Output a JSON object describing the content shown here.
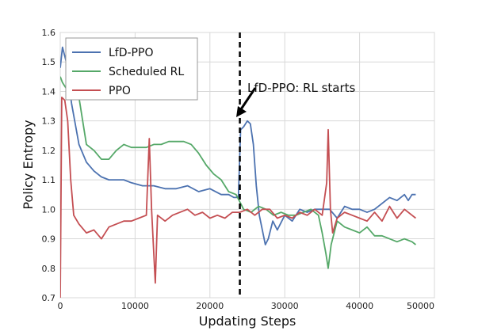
{
  "chart_data": {
    "type": "line",
    "title": "",
    "xlabel": "Updating Steps",
    "ylabel": "Policy Entropy",
    "xlim": [
      0,
      50000
    ],
    "ylim": [
      0.7,
      1.6
    ],
    "xticks": [
      0,
      10000,
      20000,
      30000,
      40000,
      50000
    ],
    "yticks": [
      0.7,
      0.8,
      0.9,
      1.0,
      1.1,
      1.2,
      1.3,
      1.4,
      1.5,
      1.6
    ],
    "grid": true,
    "legend_position": "top-left",
    "series": [
      {
        "name": "LfD-PPO",
        "color": "#4c72b0",
        "points": [
          [
            0,
            1.48
          ],
          [
            300,
            1.55
          ],
          [
            800,
            1.5
          ],
          [
            1500,
            1.36
          ],
          [
            2500,
            1.22
          ],
          [
            3500,
            1.16
          ],
          [
            4500,
            1.13
          ],
          [
            5500,
            1.11
          ],
          [
            6500,
            1.1
          ],
          [
            7500,
            1.1
          ],
          [
            8500,
            1.1
          ],
          [
            9500,
            1.09
          ],
          [
            11000,
            1.08
          ],
          [
            12500,
            1.08
          ],
          [
            14000,
            1.07
          ],
          [
            15500,
            1.07
          ],
          [
            17000,
            1.08
          ],
          [
            18500,
            1.06
          ],
          [
            20000,
            1.07
          ],
          [
            21500,
            1.05
          ],
          [
            22500,
            1.05
          ],
          [
            23200,
            1.04
          ],
          [
            23800,
            1.04
          ],
          [
            24100,
            1.27
          ],
          [
            24500,
            1.28
          ],
          [
            25000,
            1.3
          ],
          [
            25400,
            1.29
          ],
          [
            25800,
            1.22
          ],
          [
            26200,
            1.08
          ],
          [
            26600,
            0.98
          ],
          [
            27000,
            0.93
          ],
          [
            27400,
            0.88
          ],
          [
            27800,
            0.9
          ],
          [
            28400,
            0.96
          ],
          [
            29000,
            0.93
          ],
          [
            30000,
            0.98
          ],
          [
            31000,
            0.96
          ],
          [
            32000,
            1.0
          ],
          [
            33000,
            0.99
          ],
          [
            34000,
            1.0
          ],
          [
            35000,
            1.0
          ],
          [
            36000,
            1.0
          ],
          [
            37000,
            0.97
          ],
          [
            38000,
            1.01
          ],
          [
            39000,
            1.0
          ],
          [
            40000,
            1.0
          ],
          [
            41000,
            0.99
          ],
          [
            42000,
            1.0
          ],
          [
            43000,
            1.02
          ],
          [
            44000,
            1.04
          ],
          [
            45000,
            1.03
          ],
          [
            46000,
            1.05
          ],
          [
            46500,
            1.03
          ],
          [
            47000,
            1.05
          ],
          [
            47500,
            1.05
          ]
        ]
      },
      {
        "name": "Scheduled RL",
        "color": "#55a868",
        "points": [
          [
            0,
            1.45
          ],
          [
            300,
            1.43
          ],
          [
            800,
            1.41
          ],
          [
            1500,
            1.4
          ],
          [
            2500,
            1.38
          ],
          [
            3000,
            1.3
          ],
          [
            3500,
            1.22
          ],
          [
            4500,
            1.2
          ],
          [
            5500,
            1.17
          ],
          [
            6500,
            1.17
          ],
          [
            7500,
            1.2
          ],
          [
            8500,
            1.22
          ],
          [
            9500,
            1.21
          ],
          [
            10500,
            1.21
          ],
          [
            11500,
            1.21
          ],
          [
            12500,
            1.22
          ],
          [
            13500,
            1.22
          ],
          [
            14500,
            1.23
          ],
          [
            15500,
            1.23
          ],
          [
            16500,
            1.23
          ],
          [
            17500,
            1.22
          ],
          [
            18500,
            1.19
          ],
          [
            19500,
            1.15
          ],
          [
            20500,
            1.12
          ],
          [
            21500,
            1.1
          ],
          [
            22500,
            1.06
          ],
          [
            23500,
            1.05
          ],
          [
            24500,
            1.0
          ],
          [
            25500,
            0.99
          ],
          [
            26500,
            1.01
          ],
          [
            27500,
            1.0
          ],
          [
            28500,
            0.98
          ],
          [
            29500,
            0.99
          ],
          [
            30500,
            0.98
          ],
          [
            31500,
            0.98
          ],
          [
            32500,
            0.99
          ],
          [
            33500,
            1.0
          ],
          [
            34500,
            0.98
          ],
          [
            35000,
            0.92
          ],
          [
            35500,
            0.85
          ],
          [
            35800,
            0.8
          ],
          [
            36200,
            0.88
          ],
          [
            37000,
            0.96
          ],
          [
            38000,
            0.94
          ],
          [
            39000,
            0.93
          ],
          [
            40000,
            0.92
          ],
          [
            41000,
            0.94
          ],
          [
            42000,
            0.91
          ],
          [
            43000,
            0.91
          ],
          [
            44000,
            0.9
          ],
          [
            45000,
            0.89
          ],
          [
            46000,
            0.9
          ],
          [
            47000,
            0.89
          ],
          [
            47500,
            0.88
          ]
        ]
      },
      {
        "name": "PPO",
        "color": "#c44e52",
        "points": [
          [
            0,
            0.7
          ],
          [
            200,
            1.38
          ],
          [
            600,
            1.37
          ],
          [
            1000,
            1.3
          ],
          [
            1400,
            1.1
          ],
          [
            1800,
            0.98
          ],
          [
            2500,
            0.95
          ],
          [
            3500,
            0.92
          ],
          [
            4500,
            0.93
          ],
          [
            5500,
            0.9
          ],
          [
            6500,
            0.94
          ],
          [
            7500,
            0.95
          ],
          [
            8500,
            0.96
          ],
          [
            9500,
            0.96
          ],
          [
            10500,
            0.97
          ],
          [
            11500,
            0.98
          ],
          [
            11900,
            1.24
          ],
          [
            12200,
            1.0
          ],
          [
            12500,
            0.85
          ],
          [
            12700,
            0.75
          ],
          [
            13000,
            0.98
          ],
          [
            14000,
            0.96
          ],
          [
            15000,
            0.98
          ],
          [
            16000,
            0.99
          ],
          [
            17000,
            1.0
          ],
          [
            18000,
            0.98
          ],
          [
            19000,
            0.99
          ],
          [
            20000,
            0.97
          ],
          [
            21000,
            0.98
          ],
          [
            22000,
            0.97
          ],
          [
            23000,
            0.99
          ],
          [
            24000,
            0.99
          ],
          [
            25000,
            1.0
          ],
          [
            26000,
            0.98
          ],
          [
            27000,
            1.0
          ],
          [
            28000,
            1.0
          ],
          [
            29000,
            0.97
          ],
          [
            30000,
            0.98
          ],
          [
            31000,
            0.97
          ],
          [
            32000,
            0.99
          ],
          [
            33000,
            0.98
          ],
          [
            34000,
            1.0
          ],
          [
            35000,
            0.98
          ],
          [
            35600,
            1.09
          ],
          [
            35800,
            1.27
          ],
          [
            36100,
            1.0
          ],
          [
            36400,
            0.92
          ],
          [
            37000,
            0.97
          ],
          [
            38000,
            0.99
          ],
          [
            39000,
            0.98
          ],
          [
            40000,
            0.97
          ],
          [
            41000,
            0.96
          ],
          [
            42000,
            0.99
          ],
          [
            43000,
            0.96
          ],
          [
            44000,
            1.01
          ],
          [
            45000,
            0.97
          ],
          [
            46000,
            1.0
          ],
          [
            47000,
            0.98
          ],
          [
            47500,
            0.97
          ]
        ]
      }
    ],
    "annotations": [
      {
        "text": "LfD-PPO: RL starts",
        "vline_x": 24000,
        "vline_style": "dashed",
        "arrow_target": [
          24000,
          1.32
        ],
        "text_anchor": [
          25000,
          1.45
        ]
      }
    ]
  }
}
